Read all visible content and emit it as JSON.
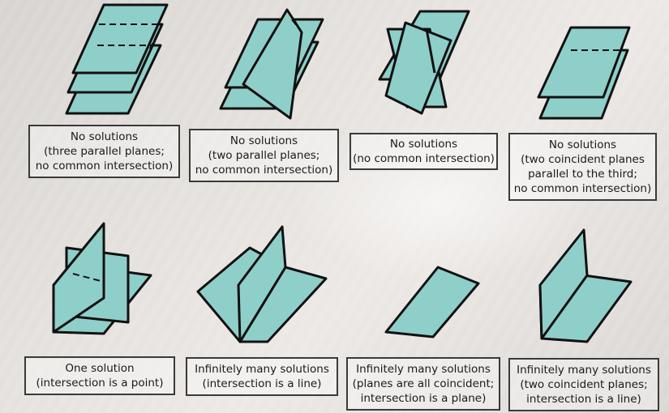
{
  "figures": [
    {
      "id": "three-parallel",
      "caption": [
        "No solutions",
        "(three parallel planes;",
        "no common intersection)"
      ]
    },
    {
      "id": "two-parallel",
      "caption": [
        "No solutions",
        "(two parallel planes;",
        "no common intersection)"
      ]
    },
    {
      "id": "no-common",
      "caption": [
        "No solutions",
        "(no common intersection)"
      ]
    },
    {
      "id": "two-coincident-parallel",
      "caption": [
        "No solutions",
        "(two coincident planes",
        "parallel to the third;",
        "no common intersection)"
      ]
    },
    {
      "id": "point",
      "caption": [
        "One solution",
        "(intersection is a point)"
      ]
    },
    {
      "id": "line",
      "caption": [
        "Infinitely many solutions",
        "(intersection is a line)"
      ]
    },
    {
      "id": "all-coincident",
      "caption": [
        "Infinitely many solutions",
        "(planes are all coincident;",
        "intersection is a plane)"
      ]
    },
    {
      "id": "two-coincident-line",
      "caption": [
        "Infinitely many solutions",
        "(two coincident planes;",
        "intersection is a line)"
      ]
    }
  ]
}
